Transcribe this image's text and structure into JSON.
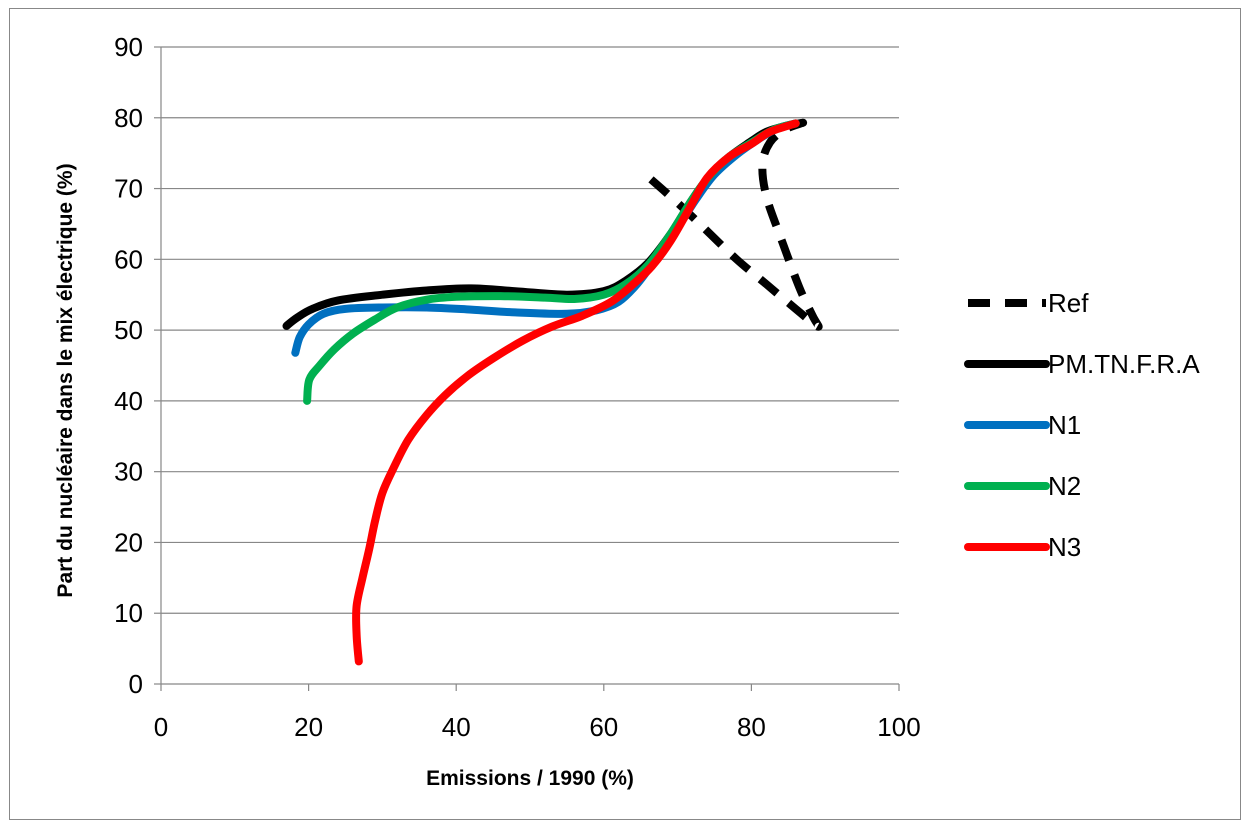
{
  "chart_data": {
    "type": "line",
    "title": "",
    "xlabel": "Emissions / 1990 (%)",
    "ylabel": "Part du nucléaire dans le mix électrique (%)",
    "xlim": [
      0,
      100
    ],
    "ylim": [
      0,
      90
    ],
    "x_ticks": [
      0,
      20,
      40,
      60,
      80,
      100
    ],
    "y_ticks": [
      0,
      10,
      20,
      30,
      40,
      50,
      60,
      70,
      80,
      90
    ],
    "grid": "horizontal",
    "legend_position": "right",
    "series": [
      {
        "name": "Ref",
        "color": "#000000",
        "dashed": true,
        "points": [
          [
            66.4,
            71.3
          ],
          [
            70.5,
            67.5
          ],
          [
            74.0,
            64.0
          ],
          [
            78.0,
            60.0
          ],
          [
            82.0,
            56.5
          ],
          [
            86.0,
            53.0
          ],
          [
            89.0,
            50.5
          ],
          [
            88.3,
            52.0
          ],
          [
            86.5,
            56.0
          ],
          [
            84.0,
            63.0
          ],
          [
            82.0,
            69.0
          ],
          [
            81.5,
            73.5
          ],
          [
            82.5,
            76.5
          ],
          [
            84.5,
            78.3
          ],
          [
            87.0,
            79.3
          ]
        ]
      },
      {
        "name": "PM.TN.F.R.A",
        "color": "#000000",
        "dashed": false,
        "points": [
          [
            17.0,
            50.6
          ],
          [
            18.5,
            51.8
          ],
          [
            20.5,
            53.0
          ],
          [
            24.0,
            54.2
          ],
          [
            30.0,
            55.0
          ],
          [
            36.0,
            55.6
          ],
          [
            42.0,
            55.9
          ],
          [
            48.0,
            55.5
          ],
          [
            55.0,
            55.0
          ],
          [
            60.0,
            55.5
          ],
          [
            63.0,
            57.0
          ],
          [
            66.0,
            59.5
          ],
          [
            69.0,
            63.5
          ],
          [
            72.0,
            68.5
          ],
          [
            74.5,
            72.0
          ],
          [
            77.0,
            74.5
          ],
          [
            80.0,
            76.7
          ],
          [
            82.0,
            78.0
          ],
          [
            84.5,
            78.8
          ],
          [
            87.0,
            79.3
          ]
        ]
      },
      {
        "name": "N1",
        "color": "#0070C0",
        "dashed": false,
        "points": [
          [
            18.2,
            46.8
          ],
          [
            18.8,
            49.0
          ],
          [
            20.0,
            50.8
          ],
          [
            22.0,
            52.3
          ],
          [
            25.0,
            53.0
          ],
          [
            30.0,
            53.2
          ],
          [
            36.0,
            53.2
          ],
          [
            42.0,
            52.9
          ],
          [
            48.0,
            52.5
          ],
          [
            55.0,
            52.3
          ],
          [
            59.0,
            52.8
          ],
          [
            62.0,
            54.0
          ],
          [
            64.5,
            56.5
          ],
          [
            67.0,
            60.0
          ],
          [
            70.0,
            64.5
          ],
          [
            72.5,
            68.5
          ],
          [
            75.0,
            72.0
          ],
          [
            78.0,
            74.8
          ],
          [
            81.0,
            77.0
          ],
          [
            83.5,
            78.5
          ],
          [
            86.0,
            79.2
          ]
        ]
      },
      {
        "name": "N2",
        "color": "#00B050",
        "dashed": false,
        "points": [
          [
            19.8,
            40.0
          ],
          [
            20.1,
            43.0
          ],
          [
            21.5,
            45.0
          ],
          [
            23.5,
            47.3
          ],
          [
            26.0,
            49.5
          ],
          [
            29.0,
            51.5
          ],
          [
            32.0,
            53.2
          ],
          [
            36.0,
            54.3
          ],
          [
            40.0,
            54.7
          ],
          [
            46.0,
            54.8
          ],
          [
            52.0,
            54.6
          ],
          [
            56.0,
            54.4
          ],
          [
            60.0,
            55.0
          ],
          [
            63.0,
            56.5
          ],
          [
            66.0,
            59.2
          ],
          [
            69.0,
            63.5
          ],
          [
            72.0,
            68.5
          ],
          [
            74.5,
            72.0
          ],
          [
            77.0,
            74.5
          ],
          [
            80.0,
            76.5
          ],
          [
            83.0,
            78.3
          ],
          [
            86.0,
            79.2
          ]
        ]
      },
      {
        "name": "N3",
        "color": "#FF0000",
        "dashed": false,
        "points": [
          [
            26.8,
            3.2
          ],
          [
            26.5,
            7.0
          ],
          [
            26.5,
            11.0
          ],
          [
            27.3,
            15.0
          ],
          [
            28.2,
            19.0
          ],
          [
            29.0,
            23.0
          ],
          [
            30.0,
            27.0
          ],
          [
            31.5,
            30.5
          ],
          [
            33.5,
            34.5
          ],
          [
            36.0,
            38.0
          ],
          [
            38.5,
            40.8
          ],
          [
            41.5,
            43.5
          ],
          [
            45.0,
            46.0
          ],
          [
            49.0,
            48.5
          ],
          [
            53.0,
            50.5
          ],
          [
            57.0,
            52.0
          ],
          [
            61.0,
            54.0
          ],
          [
            64.0,
            56.5
          ],
          [
            66.5,
            59.0
          ],
          [
            69.0,
            62.5
          ],
          [
            71.5,
            67.0
          ],
          [
            74.0,
            71.5
          ],
          [
            77.0,
            74.5
          ],
          [
            80.0,
            76.3
          ],
          [
            82.5,
            78.0
          ],
          [
            86.0,
            79.2
          ]
        ]
      }
    ]
  }
}
